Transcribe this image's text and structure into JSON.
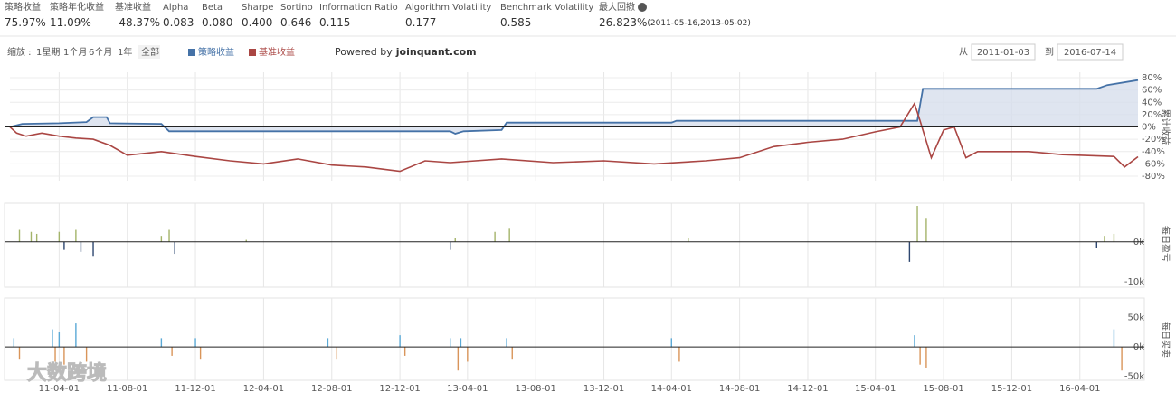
{
  "metrics": [
    {
      "label": "策略收益",
      "value": "75.97%"
    },
    {
      "label": "策略年化收益",
      "value": "11.09%"
    },
    {
      "label": "基准收益",
      "value": "-48.37%"
    },
    {
      "label": "Alpha",
      "value": "0.083"
    },
    {
      "label": "Beta",
      "value": "0.080"
    },
    {
      "label": "Sharpe",
      "value": "0.400"
    },
    {
      "label": "Sortino",
      "value": "0.646"
    },
    {
      "label": "Information Ratio",
      "value": "0.115"
    },
    {
      "label": "Algorithm Volatility",
      "value": "0.177"
    },
    {
      "label": "Benchmark Volatility",
      "value": "0.585"
    },
    {
      "label": "最大回撤",
      "value": "26.823%",
      "detail": "(2011-05-16,2013-05-02)"
    }
  ],
  "toolbar": {
    "zoom_label": "缩放 :",
    "zoom_buttons": [
      "1星期",
      "1个月",
      "6个月",
      "1年",
      "全部"
    ],
    "powered_by": "Powered by",
    "brand": "joinquant.com",
    "from_label": "从",
    "from_date": "2011-01-03",
    "to_label": "到",
    "to_date": "2016-07-14"
  },
  "watermark": "大数跨境",
  "chart_data": [
    {
      "type": "line",
      "y_label": "累计收益",
      "ylim": [
        -80,
        80
      ],
      "yticks": [
        {
          "value": 80,
          "label": "80%"
        },
        {
          "value": 60,
          "label": "60%"
        },
        {
          "value": 40,
          "label": "40%"
        },
        {
          "value": 20,
          "label": "20%"
        },
        {
          "value": 0,
          "label": "0%"
        },
        {
          "value": -20,
          "label": "-20%"
        },
        {
          "value": -40,
          "label": "-40%"
        },
        {
          "value": -60,
          "label": "-60%"
        },
        {
          "value": -80,
          "label": "-80%"
        }
      ],
      "grid": true,
      "series": [
        {
          "name": "策略收益",
          "color": "#4572a7",
          "area_fill": "#d7dfec",
          "x": [
            "11-01-03",
            "11-01-25",
            "11-04-01",
            "11-05-20",
            "11-06-01",
            "11-06-25",
            "11-07-01",
            "11-10-01",
            "11-10-15",
            "12-12-01",
            "13-03-01",
            "13-03-10",
            "13-03-25",
            "13-06-01",
            "13-06-10",
            "14-04-01",
            "14-04-10",
            "15-06-15",
            "15-06-25",
            "16-05-01",
            "16-05-20",
            "16-07-14"
          ],
          "values": [
            0,
            5,
            6,
            8,
            16,
            16,
            6,
            5,
            -7,
            -7,
            -7,
            -11,
            -7,
            -5,
            7,
            7,
            10,
            10,
            62,
            62,
            68,
            75.97
          ]
        },
        {
          "name": "基准收益",
          "color": "#aa4643",
          "x": [
            "11-01-03",
            "11-01-15",
            "11-02-01",
            "11-03-01",
            "11-04-01",
            "11-05-01",
            "11-06-01",
            "11-07-01",
            "11-08-01",
            "11-10-01",
            "11-12-01",
            "12-02-01",
            "12-04-01",
            "12-06-01",
            "12-08-01",
            "12-10-01",
            "12-12-01",
            "13-01-15",
            "13-03-01",
            "13-06-01",
            "13-09-01",
            "13-12-01",
            "14-03-01",
            "14-06-01",
            "14-08-01",
            "14-10-01",
            "14-12-01",
            "15-02-01",
            "15-04-01",
            "15-05-15",
            "15-06-10",
            "15-06-20",
            "15-07-10",
            "15-08-01",
            "15-08-20",
            "15-09-10",
            "15-10-01",
            "16-01-01",
            "16-03-01",
            "16-06-01",
            "16-06-20",
            "16-07-14"
          ],
          "values": [
            0,
            -10,
            -15,
            -10,
            -15,
            -18,
            -20,
            -30,
            -46,
            -40,
            -48,
            -55,
            -60,
            -52,
            -62,
            -65,
            -72,
            -55,
            -58,
            -52,
            -58,
            -55,
            -60,
            -55,
            -50,
            -32,
            -25,
            -20,
            -8,
            0,
            38,
            10,
            -50,
            -5,
            0,
            -50,
            -40,
            -40,
            -45,
            -48,
            -65,
            -48.37
          ]
        }
      ]
    },
    {
      "type": "bar",
      "y_label": "每日盈亏",
      "color": "#a4b46a",
      "negative_color": "#2e4770",
      "ylim": [
        -10000,
        9000
      ],
      "yticks": [
        {
          "value": 0,
          "label": "0k"
        },
        {
          "value": -10000,
          "label": "-10k"
        }
      ],
      "x": [
        "11-01-20",
        "11-02-10",
        "11-02-20",
        "11-04-01",
        "11-04-10",
        "11-05-01",
        "11-05-10",
        "11-06-01",
        "11-10-01",
        "11-10-15",
        "11-10-25",
        "12-03-01",
        "13-03-01",
        "13-03-10",
        "13-05-20",
        "13-06-15",
        "14-05-01",
        "15-06-01",
        "15-06-15",
        "15-07-01",
        "16-05-01",
        "16-05-15",
        "16-06-01"
      ],
      "values": [
        3000,
        2500,
        2000,
        2500,
        -2000,
        3000,
        -2500,
        -3500,
        1500,
        3000,
        -3000,
        500,
        -2000,
        1000,
        2500,
        3500,
        1000,
        -5000,
        9000,
        6000,
        -1500,
        1500,
        2000
      ]
    },
    {
      "type": "bar",
      "y_label": "每日买卖",
      "color": "#5aa9d6",
      "negative_color": "#d9955a",
      "ylim": [
        -55000,
        80000
      ],
      "yticks": [
        {
          "value": 50000,
          "label": "50k"
        },
        {
          "value": 0,
          "label": "0k"
        },
        {
          "value": -50000,
          "label": "-50k"
        }
      ],
      "xlim": [
        "11-01-03",
        "16-07-14"
      ],
      "xticks": [
        "11-04-01",
        "11-08-01",
        "11-12-01",
        "12-04-01",
        "12-08-01",
        "12-12-01",
        "13-04-01",
        "13-08-01",
        "13-12-01",
        "14-04-01",
        "14-08-01",
        "14-12-01",
        "15-04-01",
        "15-08-01",
        "15-12-01",
        "16-04-01"
      ],
      "x": [
        "11-01-10",
        "11-01-20",
        "11-03-20",
        "11-03-25",
        "11-04-01",
        "11-04-10",
        "11-05-01",
        "11-05-20",
        "11-10-01",
        "11-10-20",
        "11-12-01",
        "11-12-10",
        "12-07-25",
        "12-08-10",
        "12-12-01",
        "12-12-10",
        "13-03-01",
        "13-03-15",
        "13-03-20",
        "13-04-01",
        "13-06-10",
        "13-06-20",
        "14-04-01",
        "14-04-15",
        "15-06-10",
        "15-06-20",
        "15-07-01",
        "16-06-01",
        "16-06-15"
      ],
      "values": [
        15000,
        -20000,
        30000,
        -25000,
        25000,
        -30000,
        40000,
        -25000,
        15000,
        -15000,
        15000,
        -20000,
        15000,
        -20000,
        20000,
        -15000,
        15000,
        -40000,
        15000,
        -25000,
        15000,
        -20000,
        15000,
        -25000,
        20000,
        -30000,
        -35000,
        30000,
        -40000
      ]
    }
  ]
}
